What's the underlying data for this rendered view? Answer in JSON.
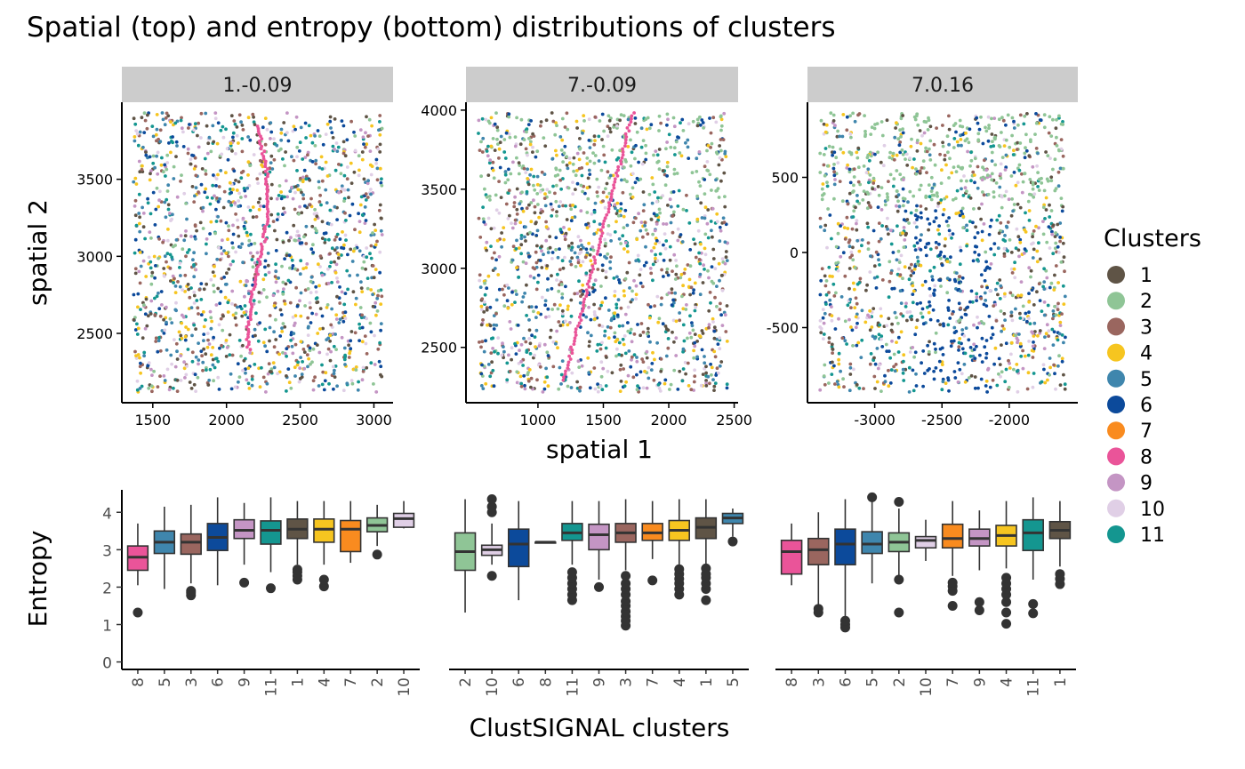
{
  "colors": {
    "1": "#5f5446",
    "2": "#8fc596",
    "3": "#9a665f",
    "4": "#f6c520",
    "5": "#3f86ad",
    "6": "#0c4a9b",
    "7": "#f98b1f",
    "8": "#ea5499",
    "9": "#c495c4",
    "10": "#e0cfe6",
    "11": "#149690"
  },
  "chart_data": [
    {
      "type": "scatter",
      "title": "Spatial (top) and entropy (bottom) distributions of clusters",
      "xlabel": "spatial 1",
      "ylabel": "spatial 2",
      "legend": {
        "title": "Clusters",
        "position": "right",
        "entries": [
          "1",
          "2",
          "3",
          "4",
          "5",
          "6",
          "7",
          "8",
          "9",
          "10",
          "11"
        ]
      },
      "panels": [
        {
          "label": "1.-0.09",
          "xlim": [
            1290,
            3130
          ],
          "ylim": [
            2050,
            4000
          ],
          "xticks": [
            "1500",
            "2000",
            "2500",
            "3000"
          ],
          "yticks": [
            "2500",
            "3000",
            "3500"
          ]
        },
        {
          "label": "7.-0.09",
          "xlim": [
            450,
            2530
          ],
          "ylim": [
            2150,
            4050
          ],
          "xticks": [
            "1000",
            "1500",
            "2000",
            "2500"
          ],
          "yticks": [
            "2500",
            "3000",
            "3500",
            "4000"
          ]
        },
        {
          "label": "7.0.16",
          "xlim": [
            -3500,
            -1490
          ],
          "ylim": [
            -1000,
            1000
          ],
          "xticks": [
            "-3000",
            "-2500",
            "-2000"
          ],
          "yticks": [
            "-500",
            "0",
            "500"
          ]
        }
      ]
    },
    {
      "type": "box",
      "xlabel": "ClustSIGNAL clusters",
      "ylabel": "Entropy",
      "ylim": [
        -0.2,
        4.6
      ],
      "yticks": [
        "0",
        "1",
        "2",
        "3",
        "4"
      ],
      "panels": [
        {
          "label": "1.-0.09",
          "boxes": [
            {
              "cluster": "8",
              "min": 2.05,
              "q1": 2.45,
              "median": 2.8,
              "q3": 3.1,
              "max": 3.7,
              "outliers": [
                1.32
              ]
            },
            {
              "cluster": "5",
              "min": 1.95,
              "q1": 2.9,
              "median": 3.2,
              "q3": 3.5,
              "max": 4.15,
              "outliers": []
            },
            {
              "cluster": "3",
              "min": 2.1,
              "q1": 2.88,
              "median": 3.2,
              "q3": 3.42,
              "max": 4.2,
              "outliers": [
                1.78,
                1.85,
                1.9
              ]
            },
            {
              "cluster": "6",
              "min": 2.05,
              "q1": 2.98,
              "median": 3.33,
              "q3": 3.7,
              "max": 4.4,
              "outliers": []
            },
            {
              "cluster": "9",
              "min": 2.6,
              "q1": 3.3,
              "median": 3.52,
              "q3": 3.8,
              "max": 4.25,
              "outliers": [
                2.12
              ]
            },
            {
              "cluster": "11",
              "min": 2.4,
              "q1": 3.15,
              "median": 3.52,
              "q3": 3.77,
              "max": 4.4,
              "outliers": [
                1.97
              ]
            },
            {
              "cluster": "1",
              "min": 2.6,
              "q1": 3.3,
              "median": 3.55,
              "q3": 3.82,
              "max": 4.3,
              "outliers": [
                2.2,
                2.3,
                2.4,
                2.47
              ]
            },
            {
              "cluster": "4",
              "min": 2.6,
              "q1": 3.2,
              "median": 3.55,
              "q3": 3.82,
              "max": 4.3,
              "outliers": [
                2.02,
                2.2
              ]
            },
            {
              "cluster": "7",
              "min": 2.65,
              "q1": 2.95,
              "median": 3.55,
              "q3": 3.78,
              "max": 4.3,
              "outliers": []
            },
            {
              "cluster": "2",
              "min": 3.1,
              "q1": 3.48,
              "median": 3.65,
              "q3": 3.85,
              "max": 4.2,
              "outliers": [
                2.87
              ]
            },
            {
              "cluster": "10",
              "min": 3.57,
              "q1": 3.6,
              "median": 3.83,
              "q3": 3.97,
              "max": 4.3,
              "outliers": []
            }
          ]
        },
        {
          "label": "7.-0.09",
          "boxes": [
            {
              "cluster": "2",
              "min": 1.32,
              "q1": 2.45,
              "median": 2.95,
              "q3": 3.45,
              "max": 4.35,
              "outliers": []
            },
            {
              "cluster": "10",
              "min": 2.6,
              "q1": 2.85,
              "median": 3.0,
              "q3": 3.12,
              "max": 3.7,
              "outliers": [
                2.3,
                4.0,
                4.15,
                4.35
              ]
            },
            {
              "cluster": "6",
              "min": 1.65,
              "q1": 2.55,
              "median": 3.15,
              "q3": 3.55,
              "max": 4.3,
              "outliers": []
            },
            {
              "cluster": "8",
              "min": 3.2,
              "q1": 3.2,
              "median": 3.2,
              "q3": 3.2,
              "max": 3.2,
              "outliers": []
            },
            {
              "cluster": "11",
              "min": 2.6,
              "q1": 3.25,
              "median": 3.45,
              "q3": 3.7,
              "max": 4.3,
              "outliers": [
                1.65,
                1.8,
                1.95,
                2.1,
                2.25,
                2.4
              ]
            },
            {
              "cluster": "9",
              "min": 2.2,
              "q1": 3.0,
              "median": 3.4,
              "q3": 3.68,
              "max": 4.3,
              "outliers": [
                2.0
              ]
            },
            {
              "cluster": "3",
              "min": 2.45,
              "q1": 3.2,
              "median": 3.45,
              "q3": 3.7,
              "max": 4.35,
              "outliers": [
                0.97,
                1.1,
                1.22,
                1.35,
                1.5,
                1.62,
                1.8,
                1.95,
                2.1,
                2.3
              ]
            },
            {
              "cluster": "7",
              "min": 2.75,
              "q1": 3.25,
              "median": 3.45,
              "q3": 3.7,
              "max": 4.3,
              "outliers": [
                2.18
              ]
            },
            {
              "cluster": "4",
              "min": 2.55,
              "q1": 3.25,
              "median": 3.52,
              "q3": 3.78,
              "max": 4.35,
              "outliers": [
                1.8,
                1.95,
                2.1,
                2.22,
                2.35,
                2.48
              ]
            },
            {
              "cluster": "1",
              "min": 2.6,
              "q1": 3.3,
              "median": 3.6,
              "q3": 3.85,
              "max": 4.35,
              "outliers": [
                1.65,
                1.95,
                2.1,
                2.25,
                2.35,
                2.5
              ]
            },
            {
              "cluster": "5",
              "min": 3.35,
              "q1": 3.7,
              "median": 3.85,
              "q3": 3.97,
              "max": 4.1,
              "outliers": [
                3.22
              ]
            }
          ]
        },
        {
          "label": "7.0.16",
          "boxes": [
            {
              "cluster": "8",
              "min": 2.05,
              "q1": 2.35,
              "median": 2.95,
              "q3": 3.25,
              "max": 3.7,
              "outliers": []
            },
            {
              "cluster": "3",
              "min": 1.5,
              "q1": 2.6,
              "median": 3.0,
              "q3": 3.3,
              "max": 4.0,
              "outliers": [
                1.32,
                1.42
              ]
            },
            {
              "cluster": "6",
              "min": 1.2,
              "q1": 2.6,
              "median": 3.15,
              "q3": 3.55,
              "max": 4.35,
              "outliers": [
                0.92,
                1.0,
                1.1
              ]
            },
            {
              "cluster": "5",
              "min": 2.1,
              "q1": 2.9,
              "median": 3.15,
              "q3": 3.48,
              "max": 4.35,
              "outliers": [
                4.4
              ]
            },
            {
              "cluster": "2",
              "min": 2.3,
              "q1": 2.95,
              "median": 3.2,
              "q3": 3.45,
              "max": 4.1,
              "outliers": [
                1.32,
                2.2,
                4.28
              ]
            },
            {
              "cluster": "10",
              "min": 2.7,
              "q1": 3.05,
              "median": 3.25,
              "q3": 3.35,
              "max": 3.8,
              "outliers": []
            },
            {
              "cluster": "7",
              "min": 2.3,
              "q1": 3.05,
              "median": 3.3,
              "q3": 3.68,
              "max": 4.3,
              "outliers": [
                1.5,
                1.9,
                2.02,
                2.12
              ]
            },
            {
              "cluster": "9",
              "min": 2.45,
              "q1": 3.1,
              "median": 3.3,
              "q3": 3.55,
              "max": 4.05,
              "outliers": [
                1.38,
                1.6
              ]
            },
            {
              "cluster": "4",
              "min": 2.5,
              "q1": 3.1,
              "median": 3.38,
              "q3": 3.65,
              "max": 4.3,
              "outliers": [
                1.02,
                1.32,
                1.6,
                1.8,
                1.95,
                2.1,
                2.25
              ]
            },
            {
              "cluster": "11",
              "min": 2.2,
              "q1": 2.98,
              "median": 3.45,
              "q3": 3.8,
              "max": 4.4,
              "outliers": [
                1.3,
                1.55
              ]
            },
            {
              "cluster": "1",
              "min": 2.55,
              "q1": 3.3,
              "median": 3.52,
              "q3": 3.75,
              "max": 4.3,
              "outliers": [
                2.08,
                2.22,
                2.35
              ]
            }
          ]
        }
      ]
    }
  ]
}
